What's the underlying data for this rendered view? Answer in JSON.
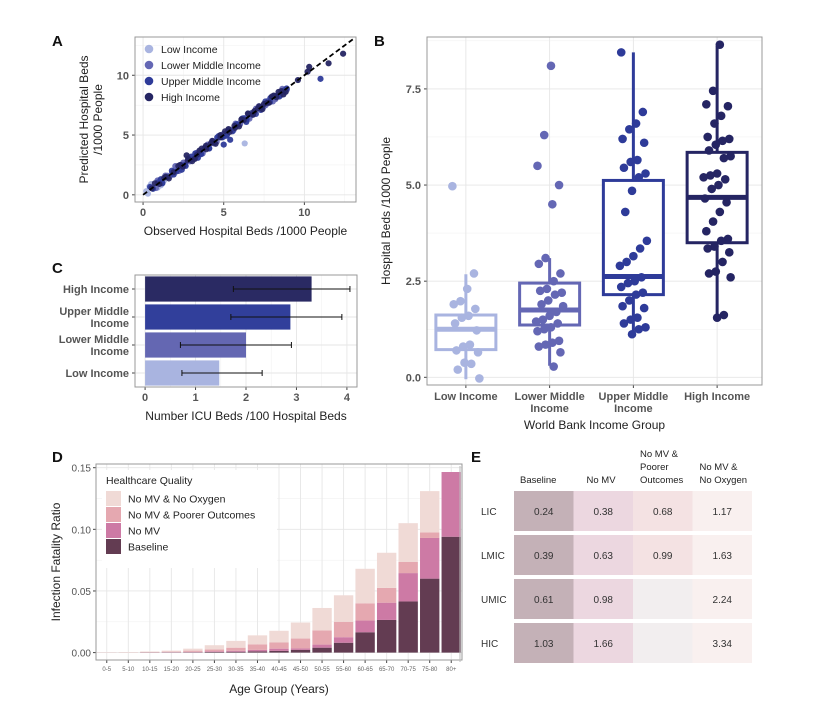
{
  "chart_data": [
    {
      "panel": "A",
      "type": "scatter",
      "title": "",
      "xlabel": "Observed Hospital Beds /1000 People",
      "ylabel": "Predicted Hospital Beds /1000 People",
      "ylabel_lines": [
        "Predicted Hospital Beds",
        "/1000 People"
      ],
      "xlim": [
        -0.5,
        13.2
      ],
      "ylim": [
        -0.6,
        13.2
      ],
      "xticks": [
        0,
        5,
        10
      ],
      "yticks": [
        0,
        5,
        10
      ],
      "grid": true,
      "reference_line": {
        "style": "dashed",
        "color": "#000000",
        "from": [
          0,
          0
        ],
        "to": [
          13,
          13
        ]
      },
      "legend": {
        "placement": "top-left",
        "entries": [
          {
            "label": "Low Income",
            "color": "#a9b4e0"
          },
          {
            "label": "Lower Middle Income",
            "color": "#6467b4"
          },
          {
            "label": "Upper Middle Income",
            "color": "#2e3b99"
          },
          {
            "label": "High Income",
            "color": "#252563"
          }
        ]
      },
      "series": [
        {
          "name": "Low Income",
          "points": [
            [
              0.2,
              0.3
            ],
            [
              0.4,
              0.7
            ],
            [
              0.6,
              0.5
            ],
            [
              0.8,
              0.9
            ],
            [
              1.0,
              1.1
            ],
            [
              0.3,
              0.1
            ],
            [
              1.3,
              1.2
            ],
            [
              0.5,
              0.9
            ],
            [
              1.6,
              1.5
            ],
            [
              0.9,
              0.6
            ],
            [
              6.3,
              4.3
            ],
            [
              2.1,
              2.2
            ],
            [
              1.1,
              0.8
            ]
          ]
        },
        {
          "name": "Lower Middle Income",
          "points": [
            [
              1.2,
              1.0
            ],
            [
              1.5,
              1.6
            ],
            [
              1.8,
              1.9
            ],
            [
              2.2,
              2.0
            ],
            [
              2.5,
              2.7
            ],
            [
              2.9,
              2.8
            ],
            [
              3.3,
              3.5
            ],
            [
              3.7,
              3.6
            ],
            [
              4.0,
              4.2
            ],
            [
              4.4,
              4.3
            ],
            [
              5.0,
              5.1
            ],
            [
              5.6,
              5.4
            ],
            [
              6.0,
              6.0
            ],
            [
              6.6,
              6.5
            ],
            [
              7.0,
              7.2
            ],
            [
              7.6,
              7.5
            ],
            [
              8.2,
              8.0
            ],
            [
              8.8,
              8.6
            ],
            [
              0.9,
              1.2
            ],
            [
              2.0,
              2.4
            ]
          ]
        },
        {
          "name": "Upper Middle Income",
          "points": [
            [
              1.1,
              1.3
            ],
            [
              1.9,
              1.7
            ],
            [
              2.6,
              2.5
            ],
            [
              3.0,
              3.2
            ],
            [
              3.6,
              3.4
            ],
            [
              4.1,
              3.9
            ],
            [
              4.6,
              4.8
            ],
            [
              5.2,
              5.0
            ],
            [
              5.4,
              4.6
            ],
            [
              5.8,
              5.9
            ],
            [
              6.2,
              6.4
            ],
            [
              6.8,
              6.7
            ],
            [
              7.3,
              7.1
            ],
            [
              7.9,
              8.1
            ],
            [
              8.5,
              8.3
            ],
            [
              8.9,
              8.9
            ],
            [
              11.0,
              9.7
            ],
            [
              5.0,
              4.2
            ],
            [
              4.9,
              4.8
            ],
            [
              2.4,
              2.1
            ],
            [
              3.4,
              3.1
            ],
            [
              6.4,
              6.1
            ]
          ]
        },
        {
          "name": "High Income",
          "points": [
            [
              1.4,
              1.5
            ],
            [
              2.3,
              2.5
            ],
            [
              2.8,
              3.0
            ],
            [
              3.2,
              3.0
            ],
            [
              3.5,
              3.7
            ],
            [
              3.9,
              4.1
            ],
            [
              4.3,
              4.5
            ],
            [
              4.8,
              5.0
            ],
            [
              5.3,
              5.5
            ],
            [
              5.7,
              5.6
            ],
            [
              6.1,
              6.3
            ],
            [
              6.5,
              6.8
            ],
            [
              6.9,
              7.0
            ],
            [
              7.2,
              7.4
            ],
            [
              7.5,
              7.6
            ],
            [
              7.8,
              7.7
            ],
            [
              8.1,
              8.3
            ],
            [
              8.4,
              8.6
            ],
            [
              8.7,
              8.4
            ],
            [
              10.3,
              10.7
            ],
            [
              11.5,
              11.0
            ],
            [
              12.4,
              11.8
            ],
            [
              9.6,
              9.6
            ],
            [
              10.2,
              10.3
            ],
            [
              2.7,
              3.3
            ]
          ]
        }
      ]
    },
    {
      "panel": "B",
      "type": "box",
      "title": "",
      "xlabel": "World Bank Income Group",
      "ylabel": "Hospital Beds /1000 People",
      "categories": [
        "Low Income",
        "Lower Middle Income",
        "Upper Middle Income",
        "High Income"
      ],
      "category_lines": [
        [
          "Low Income"
        ],
        [
          "Lower Middle",
          "Income"
        ],
        [
          "Upper Middle",
          "Income"
        ],
        [
          "High Income"
        ]
      ],
      "ylim": [
        -0.2,
        8.85
      ],
      "yticks": [
        0.0,
        2.5,
        5.0,
        7.5
      ],
      "ytick_labels": [
        "0.0",
        "2.5",
        "5.0",
        "7.5"
      ],
      "grid": true,
      "colors": [
        "#a9b4e0",
        "#6467b4",
        "#2e3b99",
        "#252563"
      ],
      "boxes": [
        {
          "q1": 0.72,
          "median": 1.25,
          "q3": 1.62,
          "whisker_low": -0.05,
          "whisker_high": 2.68
        },
        {
          "q1": 1.36,
          "median": 1.75,
          "q3": 2.45,
          "whisker_low": 0.3,
          "whisker_high": 3.1
        },
        {
          "q1": 2.15,
          "median": 2.62,
          "q3": 5.12,
          "whisker_low": 1.12,
          "whisker_high": 8.45
        },
        {
          "q1": 3.5,
          "median": 4.68,
          "q3": 5.85,
          "whisker_low": 1.62,
          "whisker_high": 8.62
        }
      ],
      "points": [
        [
          4.97,
          2.7,
          2.3,
          1.98,
          1.9,
          1.78,
          1.6,
          1.55,
          1.4,
          1.22,
          0.85,
          0.8,
          0.7,
          0.65,
          0.35,
          0.38,
          0.2,
          -0.03
        ],
        [
          8.1,
          6.3,
          5.5,
          5.0,
          4.5,
          3.1,
          2.95,
          2.7,
          2.5,
          2.3,
          2.25,
          2.2,
          2.15,
          2.0,
          1.9,
          1.85,
          1.7,
          1.6,
          1.5,
          1.45,
          1.4,
          1.3,
          1.25,
          1.2,
          0.95,
          0.9,
          0.85,
          0.8,
          0.65,
          0.28
        ],
        [
          8.45,
          6.9,
          6.6,
          6.45,
          6.2,
          6.1,
          5.65,
          5.6,
          5.45,
          5.3,
          5.2,
          4.85,
          4.3,
          3.55,
          3.35,
          3.15,
          3.0,
          2.9,
          2.6,
          2.5,
          2.45,
          2.35,
          2.2,
          2.15,
          2.0,
          1.85,
          1.8,
          1.55,
          1.5,
          1.4,
          1.3,
          1.25,
          1.12
        ],
        [
          8.65,
          7.45,
          7.1,
          7.05,
          6.8,
          6.6,
          6.25,
          6.2,
          6.15,
          6.05,
          5.9,
          5.75,
          5.7,
          5.3,
          5.25,
          5.2,
          5.15,
          5.0,
          4.9,
          4.65,
          4.55,
          4.3,
          4.05,
          3.8,
          3.6,
          3.55,
          3.4,
          3.35,
          3.25,
          3.0,
          2.75,
          2.7,
          2.6,
          1.62,
          1.55
        ]
      ]
    },
    {
      "panel": "C",
      "type": "bar",
      "orientation": "horizontal",
      "title": "",
      "xlabel": "Number ICU Beds /100 Hospital Beds",
      "ylabel": "",
      "categories": [
        "High Income",
        "Upper Middle Income",
        "Lower Middle Income",
        "Low Income"
      ],
      "category_lines": [
        [
          "High Income"
        ],
        [
          "Upper Middle",
          "Income"
        ],
        [
          "Lower Middle",
          "Income"
        ],
        [
          "Low Income"
        ]
      ],
      "values": [
        3.3,
        2.88,
        2.0,
        1.47
      ],
      "error_low": [
        1.75,
        1.7,
        0.7,
        0.73
      ],
      "error_high": [
        4.06,
        3.9,
        2.9,
        2.32
      ],
      "colors": [
        "#2a2a63",
        "#313f9b",
        "#6467b2",
        "#a9b4e0"
      ],
      "xlim": [
        -0.2,
        4.2
      ],
      "xticks": [
        0,
        1,
        2,
        3,
        4
      ],
      "grid": true
    },
    {
      "panel": "D",
      "type": "bar",
      "stacked": true,
      "title": "",
      "xlabel": "Age Group (Years)",
      "ylabel": "Infection Fatality Ratio",
      "categories": [
        "0-5",
        "5-10",
        "10-15",
        "15-20",
        "20-25",
        "25-30",
        "30-35",
        "35-40",
        "40-45",
        "45-50",
        "50-55",
        "55-60",
        "60-65",
        "65-70",
        "70-75",
        "75-80",
        "80+"
      ],
      "ylim": [
        -0.006,
        0.153
      ],
      "yticks": [
        0.0,
        0.05,
        0.1,
        0.15
      ],
      "ytick_labels": [
        "0.00",
        "0.05",
        "0.10",
        "0.15"
      ],
      "grid": true,
      "legend": {
        "title": "Healthcare Quality",
        "placement": "top-left",
        "entries": [
          {
            "label": "No MV & No Oxygen",
            "color": "#f0dad6"
          },
          {
            "label": "No MV & Poorer Outcomes",
            "color": "#e5a8b0"
          },
          {
            "label": "No MV",
            "color": "#cd7aa5"
          },
          {
            "label": "Baseline",
            "color": "#633c52"
          }
        ]
      },
      "series": [
        {
          "name": "Baseline",
          "color": "#633c52",
          "values": [
            0.0,
            0.0,
            0.0001,
            0.0002,
            0.0003,
            0.0005,
            0.0007,
            0.001,
            0.0014,
            0.0022,
            0.004,
            0.008,
            0.0165,
            0.0265,
            0.0415,
            0.06,
            0.094
          ]
        },
        {
          "name": "No MV",
          "color": "#cd7aa5",
          "values": [
            0.0,
            0.0,
            0.0001,
            0.0002,
            0.0003,
            0.0005,
            0.0008,
            0.0012,
            0.0018,
            0.0012,
            0.0025,
            0.0045,
            0.0095,
            0.014,
            0.023,
            0.033,
            0.0525
          ]
        },
        {
          "name": "No MV & Poorer Outcomes",
          "color": "#e5a8b0",
          "values": [
            0.0001,
            0.0001,
            0.0003,
            0.0004,
            0.001,
            0.0015,
            0.0025,
            0.0045,
            0.005,
            0.008,
            0.0115,
            0.0125,
            0.014,
            0.012,
            0.009,
            0.0045,
            0.0
          ]
        },
        {
          "name": "No MV & No Oxygen",
          "color": "#f0dad6",
          "values": [
            0.0002,
            0.0003,
            0.0004,
            0.0008,
            0.0016,
            0.0035,
            0.0055,
            0.0073,
            0.0095,
            0.013,
            0.0182,
            0.0215,
            0.028,
            0.0285,
            0.0315,
            0.0335,
            0.0
          ]
        }
      ]
    },
    {
      "panel": "E",
      "type": "table",
      "columns": [
        "Baseline",
        "No MV",
        "No MV & Poorer Outcomes",
        "No MV & No Oxygen"
      ],
      "column_lines": [
        [
          "Baseline"
        ],
        [
          "No MV"
        ],
        [
          "No MV &",
          "Poorer",
          "Outcomes"
        ],
        [
          "No MV &",
          "No Oxygen"
        ]
      ],
      "rows": [
        "LIC",
        "LMIC",
        "UMIC",
        "HIC"
      ],
      "values": [
        [
          "0.24",
          "0.38",
          "0.68",
          "1.17"
        ],
        [
          "0.39",
          "0.63",
          "0.99",
          "1.63"
        ],
        [
          "0.61",
          "0.98",
          "",
          "2.24"
        ],
        [
          "1.03",
          "1.66",
          "",
          "3.34"
        ]
      ],
      "cell_colors": [
        [
          "#c4b1b7",
          "#ecd7e0",
          "#f4e2e3",
          "#f9f0ef"
        ],
        [
          "#c4b1b7",
          "#ecd7e0",
          "#f4e2e3",
          "#f9f0ef"
        ],
        [
          "#c4b1b7",
          "#ecd7e0",
          "#f2eeef",
          "#f9f0ef"
        ],
        [
          "#c4b1b7",
          "#ecd7e0",
          "#f2eeef",
          "#f9f0ef"
        ]
      ]
    }
  ],
  "panels": {
    "A": "A",
    "B": "B",
    "C": "C",
    "D": "D",
    "E": "E"
  }
}
